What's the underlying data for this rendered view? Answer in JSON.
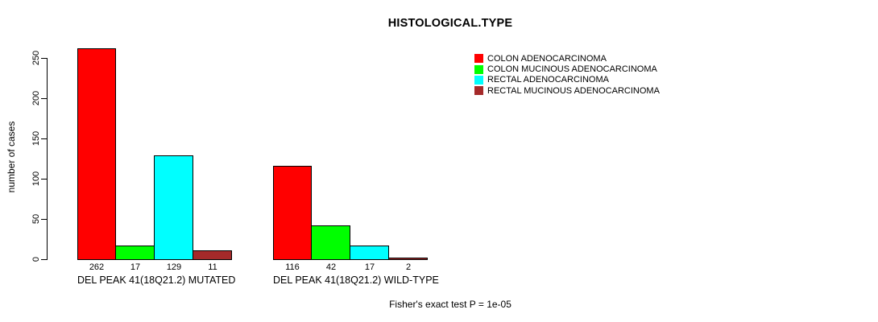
{
  "chart_data": {
    "type": "bar",
    "title": "HISTOLOGICAL.TYPE",
    "ylabel": "number of cases",
    "xlabel": "",
    "annotation": "Fisher's exact test P = 1e-05",
    "ylim": [
      0,
      250
    ],
    "yticks": [
      0,
      50,
      100,
      150,
      200,
      250
    ],
    "grid": false,
    "legend_position": "top-right",
    "categories": [
      "COLON ADENOCARCINOMA",
      "COLON MUCINOUS ADENOCARCINOMA",
      "RECTAL ADENOCARCINOMA",
      "RECTAL MUCINOUS ADENOCARCINOMA"
    ],
    "colors": [
      "#ff0000",
      "#00ff00",
      "#00ffff",
      "#a52a2a"
    ],
    "groups": [
      {
        "label": "DEL PEAK 41(18Q21.2) MUTATED",
        "values": [
          262,
          17,
          129,
          11
        ]
      },
      {
        "label": "DEL PEAK 41(18Q21.2) WILD-TYPE",
        "values": [
          116,
          42,
          17,
          2
        ]
      }
    ]
  }
}
